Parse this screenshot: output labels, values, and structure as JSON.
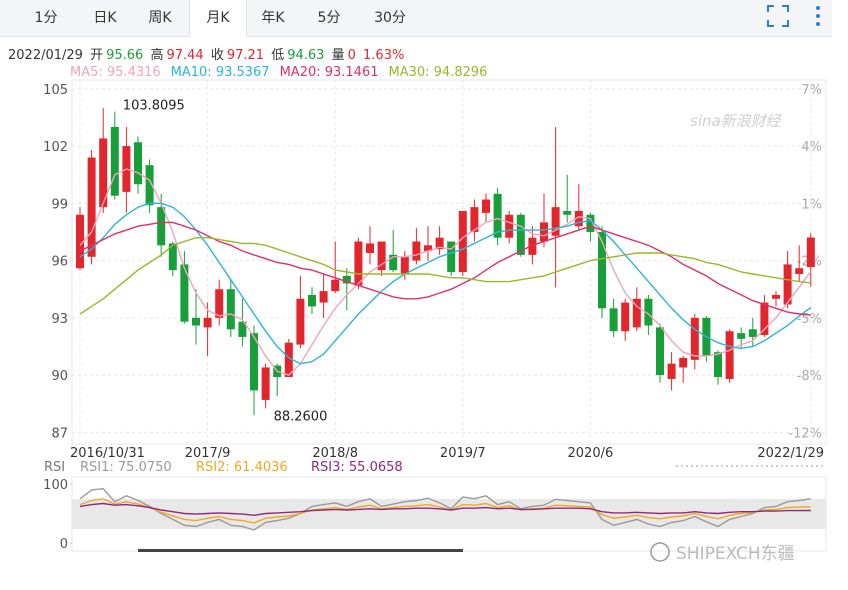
{
  "tabs": [
    "1分",
    "日K",
    "周K",
    "月K",
    "年K",
    "5分",
    "30分"
  ],
  "active_tab": 3,
  "info": {
    "date": "2022/01/29",
    "open_label": "开",
    "high_label": "高",
    "close_label": "收",
    "low_label": "低",
    "volume_label": "量",
    "volume": 0,
    "change": "1.63%"
  },
  "watermarks": [
    "sina新浪财经",
    "SHIPEXCH东疆"
  ],
  "chart_data": [
    {
      "type": "candlestick",
      "categories": [
        "2016/10/31",
        null,
        null,
        null,
        null,
        null,
        null,
        null,
        null,
        null,
        null,
        "2017/9",
        null,
        null,
        null,
        null,
        null,
        null,
        null,
        null,
        null,
        null,
        "2018/8",
        null,
        null,
        null,
        null,
        null,
        null,
        null,
        null,
        null,
        null,
        "2019/7",
        null,
        null,
        null,
        null,
        null,
        null,
        null,
        null,
        null,
        null,
        "2020/6",
        null,
        null,
        null,
        null,
        null,
        null,
        null,
        null,
        null,
        null,
        null,
        null,
        null,
        null,
        null,
        null,
        null,
        null,
        "2022/1/29"
      ],
      "open": [
        95.6,
        96.2,
        98.8,
        103.0,
        99.6,
        102.2,
        101.0,
        98.8,
        96.9,
        95.8,
        93.0,
        92.5,
        93.0,
        94.5,
        92.8,
        92.2,
        88.7,
        90.5,
        89.9,
        91.6,
        94.2,
        93.8,
        94.4,
        95.2,
        94.7,
        96.4,
        95.5,
        96.3,
        95.3,
        96.0,
        96.5,
        96.6,
        97.0,
        95.4,
        97.5,
        98.5,
        99.5,
        97.2,
        98.4,
        96.3,
        97.0,
        97.3,
        98.6,
        97.8,
        98.4,
        97.5,
        93.5,
        92.3,
        92.5,
        94.0,
        92.5,
        89.8,
        90.4,
        90.8,
        93.0,
        91.2,
        89.8,
        92.2,
        92.4,
        92.1,
        94.0,
        93.7,
        95.3,
        95.66
      ],
      "high": [
        98.8,
        101.8,
        104.0,
        103.8095,
        103.0,
        102.5,
        101.3,
        99.5,
        97.0,
        96.5,
        94.5,
        93.8,
        95.0,
        95.0,
        94.0,
        92.6,
        90.6,
        90.6,
        91.9,
        95.2,
        94.6,
        95.3,
        97.0,
        95.6,
        97.2,
        97.8,
        97.0,
        97.6,
        96.5,
        97.7,
        97.8,
        97.8,
        97.0,
        98.6,
        99.2,
        99.5,
        99.8,
        98.6,
        98.5,
        97.8,
        99.5,
        103.0,
        100.5,
        100.0,
        98.5,
        97.8,
        94.0,
        94.0,
        94.6,
        94.2,
        92.7,
        91.2,
        91.0,
        93.2,
        93.1,
        91.3,
        92.4,
        92.5,
        93.0,
        94.2,
        94.4,
        96.5,
        96.8,
        97.44
      ],
      "low": [
        95.5,
        95.8,
        98.5,
        99.2,
        98.5,
        99.5,
        98.5,
        96.2,
        95.2,
        92.7,
        91.6,
        91.0,
        92.6,
        92.0,
        91.5,
        87.9,
        88.26,
        88.9,
        89.9,
        91.4,
        93.2,
        93.0,
        94.3,
        93.4,
        94.5,
        95.8,
        95.2,
        95.4,
        95.0,
        95.8,
        96.0,
        96.3,
        95.2,
        95.2,
        97.0,
        98.0,
        96.8,
        96.9,
        96.2,
        95.8,
        96.7,
        94.6,
        98.0,
        97.6,
        97.0,
        93.0,
        92.0,
        91.8,
        92.3,
        92.1,
        89.6,
        89.2,
        89.6,
        90.3,
        90.7,
        89.5,
        89.6,
        91.4,
        91.5,
        92.0,
        93.6,
        93.5,
        94.9,
        94.63
      ],
      "close": [
        98.4,
        101.4,
        102.4,
        99.4,
        102.0,
        100.0,
        98.9,
        96.8,
        95.5,
        92.8,
        92.6,
        93.0,
        94.5,
        92.4,
        92.0,
        89.2,
        90.4,
        89.9,
        91.7,
        94.0,
        93.6,
        94.4,
        95.0,
        94.8,
        97.0,
        96.9,
        97.0,
        95.5,
        96.2,
        97.0,
        96.8,
        97.2,
        95.4,
        98.6,
        98.8,
        99.2,
        97.2,
        98.4,
        96.3,
        97.2,
        98.0,
        98.8,
        98.4,
        98.6,
        97.5,
        93.5,
        92.3,
        93.8,
        94.0,
        92.6,
        90.0,
        90.6,
        90.9,
        93.0,
        91.0,
        89.9,
        92.3,
        91.9,
        92.0,
        93.8,
        94.2,
        95.8,
        95.6,
        97.21
      ],
      "up_color": "#e3262b",
      "down_color": "#17a03a",
      "series": [
        {
          "name": "MA5: 95.4316",
          "color": "#f3a3bd",
          "values": [
            96.8,
            97.5,
            99.0,
            100.5,
            100.8,
            100.6,
            100.2,
            99.0,
            97.5,
            95.6,
            94.3,
            93.4,
            93.1,
            93.2,
            92.9,
            92.0,
            91.0,
            90.2,
            90.0,
            90.6,
            91.6,
            92.6,
            93.5,
            94.2,
            94.8,
            95.4,
            95.8,
            96.2,
            96.2,
            96.3,
            96.5,
            96.7,
            96.6,
            97.2,
            97.6,
            98.0,
            98.2,
            98.0,
            97.8,
            97.4,
            97.3,
            97.6,
            97.9,
            98.3,
            98.2,
            97.0,
            95.5,
            94.3,
            93.6,
            93.2,
            92.6,
            91.8,
            91.2,
            91.0,
            91.0,
            91.1,
            91.3,
            91.6,
            91.8,
            92.4,
            93.0,
            93.8,
            94.6,
            95.4316
          ]
        },
        {
          "name": "MA10: 93.5367",
          "color": "#2bb6d8",
          "values": [
            96.2,
            96.6,
            97.2,
            97.9,
            98.4,
            98.8,
            99.0,
            99.0,
            98.8,
            98.3,
            97.6,
            96.8,
            95.9,
            95.0,
            94.1,
            93.2,
            92.3,
            91.5,
            90.9,
            90.6,
            90.7,
            91.1,
            91.8,
            92.5,
            93.2,
            93.8,
            94.4,
            94.9,
            95.3,
            95.6,
            95.9,
            96.2,
            96.4,
            96.6,
            96.9,
            97.2,
            97.5,
            97.6,
            97.6,
            97.6,
            97.6,
            97.7,
            97.8,
            98.0,
            98.1,
            97.6,
            97.0,
            96.3,
            95.6,
            94.9,
            94.2,
            93.5,
            92.9,
            92.4,
            92.0,
            91.7,
            91.5,
            91.4,
            91.5,
            91.8,
            92.2,
            92.6,
            93.1,
            93.5367
          ]
        },
        {
          "name": "MA20: 93.1461",
          "color": "#e0306c",
          "values": [
            96.5,
            96.8,
            97.1,
            97.4,
            97.6,
            97.8,
            97.9,
            98.0,
            98.0,
            97.8,
            97.6,
            97.3,
            97.0,
            96.8,
            96.5,
            96.3,
            96.1,
            95.9,
            95.8,
            95.6,
            95.5,
            95.3,
            95.1,
            94.9,
            94.7,
            94.5,
            94.3,
            94.1,
            94.0,
            94.0,
            94.1,
            94.3,
            94.5,
            94.8,
            95.1,
            95.5,
            95.9,
            96.2,
            96.5,
            96.8,
            97.0,
            97.2,
            97.4,
            97.6,
            97.8,
            97.6,
            97.4,
            97.2,
            97.0,
            96.8,
            96.5,
            96.2,
            95.8,
            95.5,
            95.2,
            94.8,
            94.5,
            94.2,
            93.9,
            93.7,
            93.5,
            93.3,
            93.2,
            93.1461
          ]
        },
        {
          "name": "MA30: 94.8296",
          "color": "#9ab72c",
          "values": [
            93.2,
            93.6,
            94.0,
            94.5,
            95.0,
            95.5,
            95.9,
            96.3,
            96.8,
            97.0,
            97.2,
            97.2,
            97.1,
            97.0,
            96.9,
            96.9,
            96.8,
            96.6,
            96.4,
            96.2,
            96.0,
            95.8,
            95.5,
            95.4,
            95.3,
            95.3,
            95.3,
            95.3,
            95.3,
            95.3,
            95.3,
            95.2,
            95.1,
            95.1,
            95.0,
            94.9,
            94.9,
            94.9,
            95.0,
            95.1,
            95.2,
            95.4,
            95.6,
            95.8,
            96.0,
            96.1,
            96.2,
            96.3,
            96.4,
            96.4,
            96.4,
            96.3,
            96.2,
            96.1,
            95.9,
            95.8,
            95.6,
            95.4,
            95.3,
            95.2,
            95.1,
            95.0,
            94.9,
            94.8296
          ]
        }
      ],
      "ylim": [
        86.6,
        105.2
      ],
      "yticks": [
        105,
        102,
        99,
        96,
        93,
        90,
        87
      ],
      "y2_labels": [
        "7%",
        "4%",
        "1%",
        "-2%",
        "-5%",
        "-8%",
        "-12%"
      ],
      "annotations": [
        {
          "value": 103.8095,
          "label": "103.8095"
        },
        {
          "value": 88.26,
          "label": "88.2600"
        }
      ],
      "grid": true
    },
    {
      "type": "line",
      "title": "RSI",
      "series": [
        {
          "name": "RSI1: 75.0750",
          "color": "#9a9a9a",
          "values": [
            75,
            90,
            92,
            70,
            80,
            72,
            62,
            50,
            40,
            30,
            28,
            35,
            40,
            30,
            28,
            22,
            35,
            38,
            42,
            50,
            62,
            65,
            68,
            62,
            70,
            75,
            62,
            66,
            70,
            72,
            76,
            68,
            58,
            78,
            75,
            80,
            65,
            70,
            58,
            62,
            64,
            74,
            72,
            70,
            68,
            40,
            30,
            35,
            40,
            32,
            28,
            35,
            38,
            45,
            36,
            28,
            40,
            45,
            50,
            60,
            62,
            70,
            72,
            75.075
          ]
        },
        {
          "name": "RSI2: 61.4036",
          "color": "#f5a623",
          "values": [
            65,
            72,
            75,
            66,
            70,
            66,
            60,
            52,
            46,
            40,
            38,
            42,
            45,
            40,
            38,
            34,
            42,
            44,
            46,
            50,
            56,
            58,
            60,
            57,
            61,
            64,
            58,
            60,
            62,
            63,
            65,
            61,
            56,
            65,
            64,
            67,
            60,
            63,
            56,
            58,
            59,
            64,
            63,
            62,
            61,
            48,
            42,
            44,
            47,
            43,
            41,
            44,
            46,
            50,
            45,
            41,
            47,
            50,
            52,
            56,
            57,
            60,
            61,
            61.4036
          ]
        },
        {
          "name": "RSI3: 55.0658",
          "color": "#8e2a7e",
          "values": [
            62,
            65,
            67,
            64,
            65,
            63,
            60,
            56,
            53,
            50,
            49,
            50,
            51,
            50,
            49,
            47,
            50,
            51,
            52,
            53,
            55,
            56,
            57,
            56,
            57,
            58,
            57,
            58,
            58,
            59,
            59,
            58,
            56,
            59,
            59,
            60,
            58,
            59,
            57,
            57,
            58,
            59,
            59,
            59,
            58,
            53,
            51,
            51,
            52,
            51,
            50,
            51,
            51,
            53,
            51,
            50,
            52,
            53,
            53,
            54,
            54,
            55,
            55,
            55.0658
          ]
        }
      ],
      "ylim": [
        0,
        100
      ],
      "yticks": [
        100,
        0
      ]
    }
  ]
}
